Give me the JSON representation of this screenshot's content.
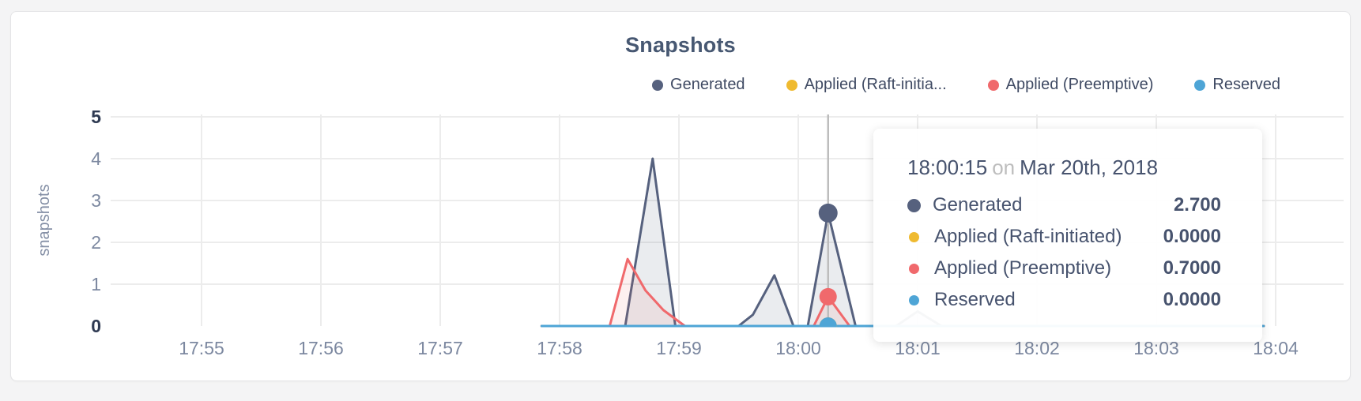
{
  "colors": {
    "background": "#F4F4F5",
    "card_background": "#FFFFFF",
    "card_border": "#E4E4E6",
    "title_text": "#475872",
    "legend_text": "#3F4A63",
    "grid_line": "#ECECEC",
    "tick_muted": "#7C88A0",
    "tick_strong": "#2E3A52",
    "hover_guideline": "#BDBDBD",
    "tooltip_text": "#47536E",
    "tooltip_muted": "#BDBDBD"
  },
  "chart_data": {
    "type": "area",
    "title": "Snapshots",
    "ylabel": "snapshots",
    "xlabel": "",
    "ylim": [
      0,
      5
    ],
    "yticks": [
      0,
      1,
      2,
      3,
      4,
      5
    ],
    "grid": true,
    "legend_position": "top-right",
    "x_axis": {
      "note": "t = minutes since 17:00 on Mar 20th, 2018",
      "ticks": [
        {
          "t": 55,
          "label": "17:55"
        },
        {
          "t": 56,
          "label": "17:56"
        },
        {
          "t": 57,
          "label": "17:57"
        },
        {
          "t": 58,
          "label": "17:58"
        },
        {
          "t": 59,
          "label": "17:59"
        },
        {
          "t": 60,
          "label": "18:00"
        },
        {
          "t": 61,
          "label": "18:01"
        },
        {
          "t": 62,
          "label": "18:02"
        },
        {
          "t": 63,
          "label": "18:03"
        },
        {
          "t": 64,
          "label": "18:04"
        }
      ]
    },
    "series": [
      {
        "name": "Generated",
        "legend_label": "Generated",
        "color": "#56617E",
        "fill": "rgba(86,97,126,0.12)",
        "points": [
          [
            57.85,
            0
          ],
          [
            58.55,
            0
          ],
          [
            58.78,
            4.0
          ],
          [
            58.97,
            0
          ],
          [
            59.5,
            0
          ],
          [
            59.62,
            0.27
          ],
          [
            59.8,
            1.21
          ],
          [
            59.96,
            0
          ],
          [
            60.08,
            0
          ],
          [
            60.25,
            2.7
          ],
          [
            60.48,
            0
          ],
          [
            60.82,
            0
          ],
          [
            61.0,
            0.35
          ],
          [
            61.2,
            0
          ],
          [
            63.9,
            0
          ]
        ]
      },
      {
        "name": "Applied (Raft-initiated)",
        "legend_label": "Applied (Raft-initia...",
        "color": "#EFBA30",
        "fill": "rgba(239,186,48,0.10)",
        "points": [
          [
            57.85,
            0
          ],
          [
            63.9,
            0
          ]
        ]
      },
      {
        "name": "Applied (Preemptive)",
        "legend_label": "Applied (Preemptive)",
        "color": "#F0696C",
        "fill": "rgba(240,105,108,0.10)",
        "points": [
          [
            57.85,
            0
          ],
          [
            58.42,
            0
          ],
          [
            58.57,
            1.6
          ],
          [
            58.72,
            0.85
          ],
          [
            58.87,
            0.38
          ],
          [
            59.05,
            0
          ],
          [
            60.13,
            0
          ],
          [
            60.25,
            0.7
          ],
          [
            60.43,
            0
          ],
          [
            63.9,
            0
          ]
        ]
      },
      {
        "name": "Reserved",
        "legend_label": "Reserved",
        "color": "#4EA5D6",
        "fill": "rgba(78,165,214,0.10)",
        "points": [
          [
            57.85,
            0
          ],
          [
            63.9,
            0
          ]
        ]
      }
    ],
    "hover": {
      "t": 60.25,
      "time_label": "18:00:15",
      "on_word": "on",
      "date_label": "Mar 20th, 2018",
      "rows": [
        {
          "name": "Generated",
          "value": "2.700",
          "emphasized": true
        },
        {
          "name": "Applied (Raft-initiated)",
          "value": "0.0000",
          "emphasized": false
        },
        {
          "name": "Applied (Preemptive)",
          "value": "0.7000",
          "emphasized": false
        },
        {
          "name": "Reserved",
          "value": "0.0000",
          "emphasized": false
        }
      ]
    }
  }
}
